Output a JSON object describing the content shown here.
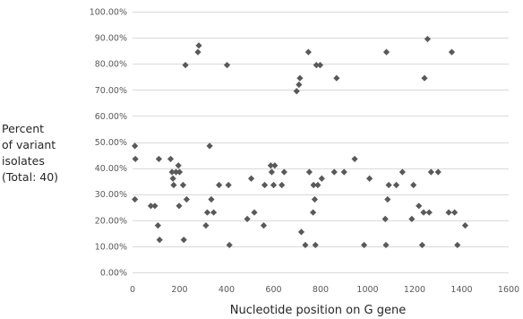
{
  "chart_data": {
    "type": "scatter",
    "xlabel": "Nucleotide position on G gene",
    "ylabel_lines": [
      "Percent",
      "of variant",
      "isolates",
      "(Total: 40)"
    ],
    "xlim": [
      0,
      1600
    ],
    "ylim": [
      0,
      100
    ],
    "x_ticks": [
      0,
      200,
      400,
      600,
      800,
      1000,
      1200,
      1400,
      1600
    ],
    "x_tick_labels": [
      "0",
      "200",
      "400",
      "600",
      "800",
      "1000",
      "1200",
      "1400",
      "1600"
    ],
    "y_ticks": [
      0,
      10,
      20,
      30,
      40,
      50,
      60,
      70,
      80,
      90,
      100
    ],
    "y_tick_labels": [
      "0.00%",
      "10.00%",
      "20.00%",
      "30.00%",
      "40.00%",
      "50.00%",
      "60.00%",
      "70.00%",
      "80.00%",
      "90.00%",
      "100.00%"
    ],
    "grid": "horizontal",
    "marker": "diamond",
    "marker_color": "#595959",
    "points": [
      [
        10,
        48.5
      ],
      [
        12,
        43.5
      ],
      [
        10,
        28.0
      ],
      [
        78,
        25.5
      ],
      [
        95,
        25.5
      ],
      [
        108,
        18.0
      ],
      [
        112,
        43.5
      ],
      [
        115,
        12.5
      ],
      [
        162,
        43.5
      ],
      [
        168,
        38.5
      ],
      [
        172,
        36.0
      ],
      [
        175,
        33.5
      ],
      [
        185,
        38.5
      ],
      [
        195,
        41.0
      ],
      [
        198,
        25.5
      ],
      [
        200,
        38.5
      ],
      [
        215,
        33.5
      ],
      [
        218,
        12.5
      ],
      [
        225,
        79.5
      ],
      [
        230,
        28.0
      ],
      [
        278,
        84.5
      ],
      [
        282,
        87.0
      ],
      [
        312,
        18.0
      ],
      [
        318,
        23.0
      ],
      [
        328,
        48.5
      ],
      [
        335,
        28.0
      ],
      [
        345,
        23.0
      ],
      [
        368,
        33.5
      ],
      [
        402,
        79.5
      ],
      [
        408,
        33.5
      ],
      [
        412,
        10.5
      ],
      [
        488,
        20.5
      ],
      [
        505,
        36.0
      ],
      [
        518,
        23.0
      ],
      [
        558,
        18.0
      ],
      [
        562,
        33.5
      ],
      [
        588,
        41.0
      ],
      [
        592,
        38.5
      ],
      [
        600,
        33.5
      ],
      [
        605,
        41.0
      ],
      [
        635,
        33.5
      ],
      [
        645,
        38.5
      ],
      [
        698,
        69.5
      ],
      [
        708,
        72.0
      ],
      [
        712,
        74.5
      ],
      [
        718,
        15.5
      ],
      [
        735,
        10.5
      ],
      [
        748,
        84.5
      ],
      [
        752,
        38.5
      ],
      [
        768,
        23.0
      ],
      [
        770,
        33.5
      ],
      [
        775,
        28.0
      ],
      [
        778,
        10.5
      ],
      [
        782,
        79.5
      ],
      [
        788,
        33.5
      ],
      [
        798,
        79.5
      ],
      [
        805,
        36.0
      ],
      [
        858,
        38.5
      ],
      [
        868,
        74.5
      ],
      [
        900,
        38.5
      ],
      [
        945,
        43.5
      ],
      [
        985,
        10.5
      ],
      [
        1008,
        36.0
      ],
      [
        1075,
        20.5
      ],
      [
        1078,
        10.5
      ],
      [
        1080,
        84.5
      ],
      [
        1085,
        28.0
      ],
      [
        1090,
        33.5
      ],
      [
        1122,
        33.5
      ],
      [
        1148,
        38.5
      ],
      [
        1188,
        20.5
      ],
      [
        1195,
        33.5
      ],
      [
        1218,
        25.5
      ],
      [
        1232,
        10.5
      ],
      [
        1238,
        23.0
      ],
      [
        1242,
        74.5
      ],
      [
        1255,
        89.5
      ],
      [
        1262,
        23.0
      ],
      [
        1270,
        38.5
      ],
      [
        1300,
        38.5
      ],
      [
        1345,
        23.0
      ],
      [
        1358,
        84.5
      ],
      [
        1370,
        23.0
      ],
      [
        1382,
        10.5
      ],
      [
        1415,
        18.0
      ]
    ]
  }
}
